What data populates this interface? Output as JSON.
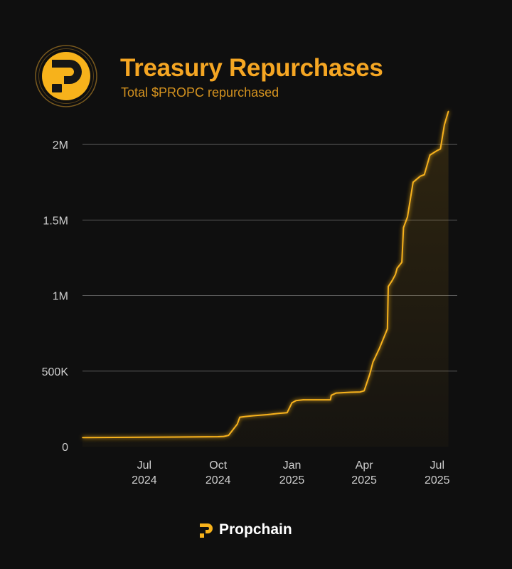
{
  "colors": {
    "accent": "#f7b21b",
    "title": "#f5a623",
    "subtitle": "#d4921f",
    "background": "#0f0f0f",
    "grid": "#5a5a5a"
  },
  "header": {
    "logo_icon": "propchain-logo-icon",
    "title": "Treasury Repurchases",
    "subtitle": "Total $PROPC repurchased"
  },
  "footer": {
    "brand_icon": "propchain-logo-icon",
    "brand_name": "Propchain"
  },
  "chart_data": {
    "type": "area",
    "title": "Treasury Repurchases",
    "subtitle": "Total $PROPC repurchased",
    "xlabel": "",
    "ylabel": "",
    "grid": true,
    "legend": "none",
    "xlim": [
      "2024-04-15",
      "2025-07-26"
    ],
    "ylim": [
      0,
      2250000
    ],
    "yticks": [
      {
        "value": 0,
        "label": "0"
      },
      {
        "value": 500000,
        "label": "500K"
      },
      {
        "value": 1000000,
        "label": "1M"
      },
      {
        "value": 1500000,
        "label": "1.5M"
      },
      {
        "value": 2000000,
        "label": "2M"
      }
    ],
    "xticks": [
      {
        "date": "2024-07-01",
        "month": "Jul",
        "year": "2024"
      },
      {
        "date": "2024-10-01",
        "month": "Oct",
        "year": "2024"
      },
      {
        "date": "2025-01-01",
        "month": "Jan",
        "year": "2025"
      },
      {
        "date": "2025-04-01",
        "month": "Apr",
        "year": "2025"
      },
      {
        "date": "2025-07-01",
        "month": "Jul",
        "year": "2025"
      }
    ],
    "series": [
      {
        "x": [
          "2024-04-15",
          "2024-07-01",
          "2024-10-01",
          "2024-10-08",
          "2024-10-14",
          "2024-10-25",
          "2024-10-28",
          "2024-11-05",
          "2024-11-15",
          "2024-12-01",
          "2024-12-15",
          "2024-12-26",
          "2025-01-01",
          "2025-01-06",
          "2025-01-15",
          "2025-01-31",
          "2025-02-18",
          "2025-02-19",
          "2025-02-25",
          "2025-03-15",
          "2025-03-27",
          "2025-04-01",
          "2025-04-08",
          "2025-04-12",
          "2025-04-20",
          "2025-04-30",
          "2025-05-01",
          "2025-05-06",
          "2025-05-10",
          "2025-05-12",
          "2025-05-18",
          "2025-05-20",
          "2025-05-25",
          "2025-06-01",
          "2025-06-10",
          "2025-06-15",
          "2025-06-22",
          "2025-07-01",
          "2025-07-05",
          "2025-07-10",
          "2025-07-15"
        ],
        "y": [
          60000,
          62000,
          66000,
          68000,
          75000,
          150000,
          195000,
          200000,
          205000,
          212000,
          220000,
          225000,
          290000,
          305000,
          310000,
          310000,
          310000,
          340000,
          355000,
          360000,
          362000,
          370000,
          480000,
          560000,
          650000,
          780000,
          1060000,
          1100000,
          1140000,
          1180000,
          1220000,
          1450000,
          1520000,
          1750000,
          1790000,
          1800000,
          1930000,
          1960000,
          1970000,
          2130000,
          2220000
        ]
      }
    ]
  }
}
